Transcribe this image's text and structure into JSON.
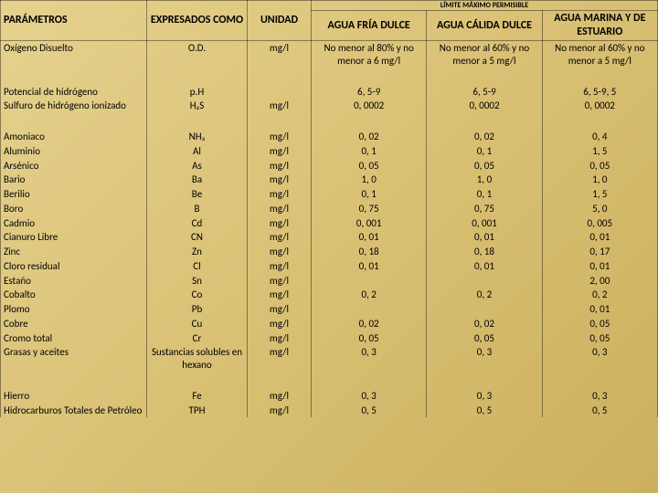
{
  "headers": {
    "parametros": "PARÁMETROS",
    "expresados": "EXPRESADOS COMO",
    "unidad": "UNIDAD",
    "limite": "LÍMITE MÁXIMO PERMISIBLE",
    "fria": "AGUA FRÍA DULCE",
    "calida": "AGUA CÁLIDA DULCE",
    "marina": "AGUA MARINA Y DE ESTUARIO"
  },
  "rows": [
    {
      "p": "Oxígeno Disuelto",
      "e": "O.D.",
      "u": "mg/l",
      "f": "No menor al 80% y no menor a 6 mg/l",
      "c": "No menor al 60% y no menor a 5 mg/l",
      "m": "No menor al 60% y no menor a 5 mg/l",
      "gap": 1
    },
    {
      "p": "Potencial de hidrógeno",
      "e": "p.H",
      "u": "",
      "f": "6, 5-9",
      "c": "6, 5-9",
      "m": "6, 5-9, 5",
      "gap": 0
    },
    {
      "p": "Sulfuro de hidrógeno ionizado",
      "e": "H₂S",
      "u": "mg/l",
      "f": "0, 0002",
      "c": "0, 0002",
      "m": "0, 0002",
      "gap": 1
    },
    {
      "p": "Amoniaco",
      "e": "NH₃",
      "u": "mg/l",
      "f": "0, 02",
      "c": "0, 02",
      "m": "0, 4",
      "gap": 0
    },
    {
      "p": "Aluminio",
      "e": "Al",
      "u": "mg/l",
      "f": "0, 1",
      "c": "0, 1",
      "m": "1, 5",
      "gap": 0
    },
    {
      "p": "Arsénico",
      "e": "As",
      "u": "mg/l",
      "f": "0, 05",
      "c": "0, 05",
      "m": "0, 05",
      "gap": 0
    },
    {
      "p": "Bario",
      "e": "Ba",
      "u": "mg/l",
      "f": "1, 0",
      "c": "1, 0",
      "m": "1, 0",
      "gap": 0
    },
    {
      "p": "Berilio",
      "e": "Be",
      "u": "mg/l",
      "f": "0, 1",
      "c": "0, 1",
      "m": "1, 5",
      "gap": 0
    },
    {
      "p": "Boro",
      "e": "B",
      "u": "mg/l",
      "f": "0, 75",
      "c": "0, 75",
      "m": "5, 0",
      "gap": 0
    },
    {
      "p": "Cadmio",
      "e": "Cd",
      "u": "mg/l",
      "f": "0, 001",
      "c": "0, 001",
      "m": "0, 005",
      "gap": 0
    },
    {
      "p": "Cianuro Libre",
      "e": "CN",
      "u": "mg/l",
      "f": "0, 01",
      "c": "0, 01",
      "m": "0, 01",
      "gap": 0
    },
    {
      "p": "Zinc",
      "e": "Zn",
      "u": "mg/l",
      "f": "0, 18",
      "c": "0, 18",
      "m": "0, 17",
      "gap": 0
    },
    {
      "p": "Cloro residual",
      "e": "Cl",
      "u": "mg/l",
      "f": "0, 01",
      "c": "0, 01",
      "m": "0, 01",
      "gap": 0
    },
    {
      "p": "Estaño",
      "e": "Sn",
      "u": "mg/l",
      "f": "",
      "c": "",
      "m": "2, 00",
      "gap": 0
    },
    {
      "p": "Cobalto",
      "e": "Co",
      "u": "mg/l",
      "f": "0, 2",
      "c": "0, 2",
      "m": "0, 2",
      "gap": 0
    },
    {
      "p": "Plomo",
      "e": "Pb",
      "u": "mg/l",
      "f": "",
      "c": "",
      "m": "0, 01",
      "gap": 0
    },
    {
      "p": "Cobre",
      "e": "Cu",
      "u": "mg/l",
      "f": "0, 02",
      "c": "0, 02",
      "m": "0, 05",
      "gap": 0
    },
    {
      "p": "Cromo total",
      "e": "Cr",
      "u": "mg/l",
      "f": "0, 05",
      "c": "0, 05",
      "m": "0, 05",
      "gap": 0
    },
    {
      "p": "Grasas y aceites",
      "e": "Sustancias solubles en hexano",
      "u": "mg/l",
      "f": "0, 3",
      "c": "0, 3",
      "m": "0, 3",
      "gap": 1
    },
    {
      "p": "Hierro",
      "e": "Fe",
      "u": "mg/l",
      "f": "0, 3",
      "c": "0, 3",
      "m": "0, 3",
      "gap": 0
    },
    {
      "p": "Hidrocarburos Totales de Petróleo",
      "e": "TPH",
      "u": "mg/l",
      "f": "0, 5",
      "c": "0, 5",
      "m": "0, 5",
      "gap": 0
    }
  ]
}
